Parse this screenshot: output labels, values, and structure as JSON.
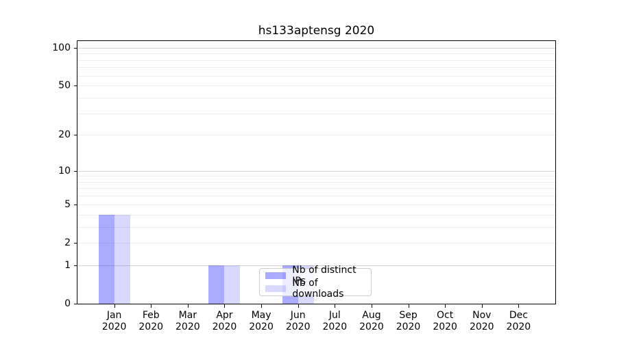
{
  "chart_data": {
    "type": "bar",
    "title": "hs133aptensg 2020",
    "x": {
      "months": [
        "Jan",
        "Feb",
        "Mar",
        "Apr",
        "May",
        "Jun",
        "Jul",
        "Aug",
        "Sep",
        "Oct",
        "Nov",
        "Dec"
      ],
      "year": "2020"
    },
    "series": [
      {
        "key": "distinct-ips",
        "name": "Nb of distinct IPs",
        "color": "rgba(0,0,255,0.33)",
        "values": [
          4,
          0,
          0,
          1,
          0,
          1,
          0,
          0,
          0,
          0,
          0,
          0
        ]
      },
      {
        "key": "downloads",
        "name": "Nb of downloads",
        "color": "rgba(0,0,255,0.15)",
        "values": [
          4,
          0,
          0,
          1,
          0,
          1,
          0,
          0,
          0,
          0,
          0,
          0
        ]
      }
    ],
    "y_axis": {
      "scale": "log1p",
      "tick_values": [
        100,
        50,
        20,
        10,
        5,
        2,
        1,
        0
      ],
      "range": [
        0,
        113
      ],
      "major_grid_values": [
        1,
        10,
        100
      ],
      "minor_grid_values": [
        2,
        3,
        4,
        5,
        6,
        7,
        8,
        9,
        20,
        30,
        40,
        50,
        60,
        70,
        80,
        90
      ]
    },
    "legend": {
      "position": "lower-center"
    },
    "colors": {
      "major_grid": "#d2d2d2",
      "minor_grid": "#ececec",
      "spine": "#000000",
      "text": "#000000"
    }
  }
}
